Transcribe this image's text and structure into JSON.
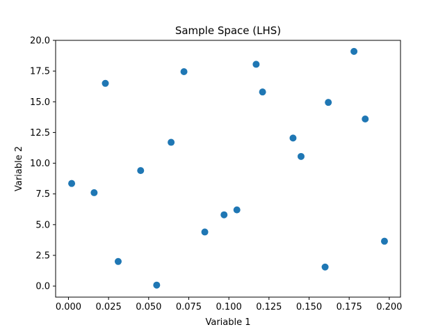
{
  "chart_data": {
    "type": "scatter",
    "title": "Sample Space (LHS)",
    "xlabel": "Variable 1",
    "ylabel": "Variable 2",
    "xlim": [
      -0.008,
      0.207
    ],
    "ylim": [
      -0.9,
      20.0
    ],
    "xticks": [
      "0.000",
      "0.025",
      "0.050",
      "0.075",
      "0.100",
      "0.125",
      "0.150",
      "0.175",
      "0.200"
    ],
    "yticks": [
      "0.0",
      "2.5",
      "5.0",
      "7.5",
      "10.0",
      "12.5",
      "15.0",
      "17.5",
      "20.0"
    ],
    "grid": false,
    "marker_color": "#1f77b4",
    "points": [
      {
        "x": 0.002,
        "y": 8.35
      },
      {
        "x": 0.016,
        "y": 7.6
      },
      {
        "x": 0.023,
        "y": 16.5
      },
      {
        "x": 0.031,
        "y": 2.0
      },
      {
        "x": 0.045,
        "y": 9.4
      },
      {
        "x": 0.055,
        "y": 0.08
      },
      {
        "x": 0.064,
        "y": 11.7
      },
      {
        "x": 0.072,
        "y": 17.45
      },
      {
        "x": 0.085,
        "y": 4.4
      },
      {
        "x": 0.097,
        "y": 5.8
      },
      {
        "x": 0.105,
        "y": 6.2
      },
      {
        "x": 0.117,
        "y": 18.05
      },
      {
        "x": 0.121,
        "y": 15.8
      },
      {
        "x": 0.14,
        "y": 12.05
      },
      {
        "x": 0.145,
        "y": 10.55
      },
      {
        "x": 0.16,
        "y": 1.55
      },
      {
        "x": 0.162,
        "y": 14.95
      },
      {
        "x": 0.178,
        "y": 19.1
      },
      {
        "x": 0.185,
        "y": 13.6
      },
      {
        "x": 0.197,
        "y": 3.65
      }
    ]
  }
}
